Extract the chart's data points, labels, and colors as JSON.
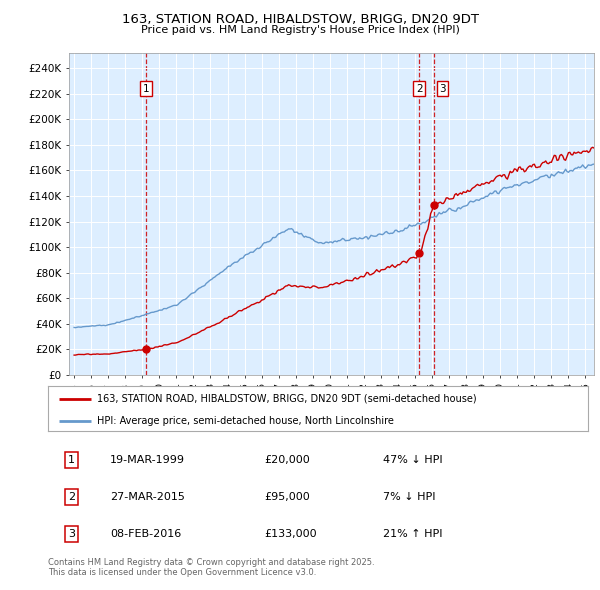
{
  "title": "163, STATION ROAD, HIBALDSTOW, BRIGG, DN20 9DT",
  "subtitle": "Price paid vs. HM Land Registry's House Price Index (HPI)",
  "ylim": [
    0,
    252000
  ],
  "xlim_start": 1994.7,
  "xlim_end": 2025.5,
  "sale1_date": "19-MAR-1999",
  "sale1_price": 20000,
  "sale1_year": 1999.21,
  "sale2_date": "27-MAR-2015",
  "sale2_price": 95000,
  "sale2_year": 2015.24,
  "sale3_date": "08-FEB-2016",
  "sale3_price": 133000,
  "sale3_year": 2016.11,
  "red_color": "#cc0000",
  "blue_color": "#6699cc",
  "bg_color": "#ddeeff",
  "legend_label_red": "163, STATION ROAD, HIBALDSTOW, BRIGG, DN20 9DT (semi-detached house)",
  "legend_label_blue": "HPI: Average price, semi-detached house, North Lincolnshire",
  "footer": "Contains HM Land Registry data © Crown copyright and database right 2025.\nThis data is licensed under the Open Government Licence v3.0."
}
